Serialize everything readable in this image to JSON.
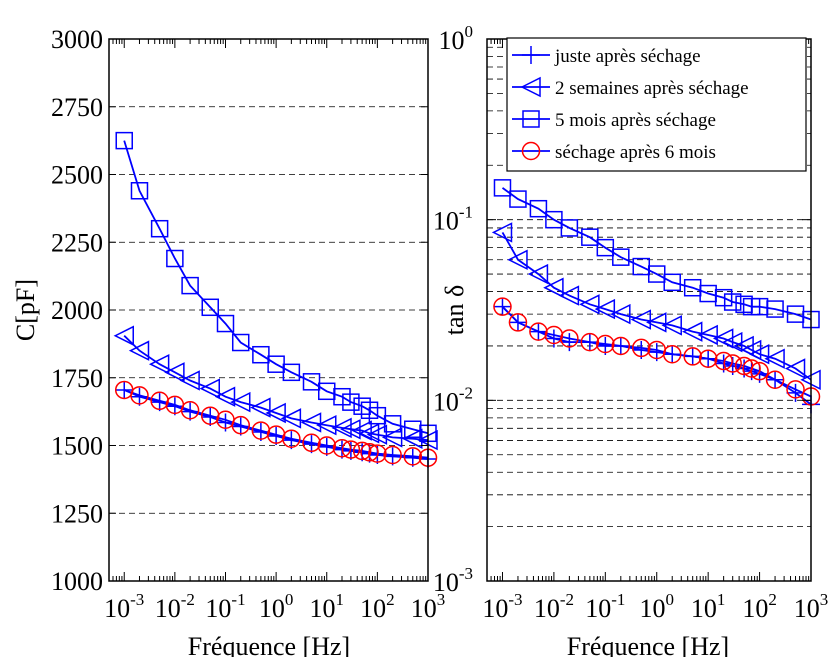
{
  "chart_data": [
    {
      "type": "line",
      "title": "",
      "xlabel": "Fréquence [Hz]",
      "ylabel": "C[pF]",
      "xscale": "log",
      "xlim": [
        0.0005,
        1000
      ],
      "ylim": [
        1000,
        3000
      ],
      "xticks": [
        0.001,
        0.01,
        0.1,
        1,
        10,
        100,
        1000
      ],
      "xtick_labels": [
        {
          "base": "10",
          "exp": "-3"
        },
        {
          "base": "10",
          "exp": "-2"
        },
        {
          "base": "10",
          "exp": "-1"
        },
        {
          "base": "10",
          "exp": "0"
        },
        {
          "base": "10",
          "exp": "1"
        },
        {
          "base": "10",
          "exp": "2"
        },
        {
          "base": "10",
          "exp": "3"
        }
      ],
      "yticks": [
        1000,
        1250,
        1500,
        1750,
        2000,
        2250,
        2500,
        2750,
        3000
      ],
      "ytick_labels": [
        "1000",
        "1250",
        "1500",
        "1750",
        "2000",
        "2250",
        "2500",
        "2750",
        "3000"
      ],
      "grid": "horizontal dashed",
      "legend": "none",
      "series": [
        {
          "name": "juste après séchage",
          "color": "#0000ff",
          "marker": "plus",
          "x": [
            0.001,
            0.002,
            0.005,
            0.01,
            0.02,
            0.05,
            0.1,
            0.2,
            0.5,
            1,
            2,
            5,
            10,
            20,
            30,
            50,
            70,
            100,
            200,
            500,
            1000
          ],
          "y": [
            1705,
            1680,
            1660,
            1645,
            1625,
            1605,
            1585,
            1570,
            1550,
            1535,
            1520,
            1505,
            1495,
            1485,
            1480,
            1475,
            1470,
            1465,
            1460,
            1455,
            1450
          ]
        },
        {
          "name": "2 semaines après séchage",
          "color": "#0000ff",
          "marker": "triangle-left",
          "x": [
            0.001,
            0.002,
            0.005,
            0.01,
            0.02,
            0.05,
            0.1,
            0.2,
            0.5,
            1,
            2,
            5,
            10,
            20,
            30,
            50,
            70,
            100,
            200,
            500,
            1000
          ],
          "y": [
            1905,
            1850,
            1800,
            1770,
            1740,
            1710,
            1680,
            1660,
            1640,
            1620,
            1600,
            1585,
            1575,
            1565,
            1560,
            1555,
            1545,
            1540,
            1530,
            1525,
            1520
          ]
        },
        {
          "name": "5 mois après séchage",
          "color": "#0000ff",
          "marker": "square",
          "x": [
            0.001,
            0.002,
            0.005,
            0.01,
            0.02,
            0.05,
            0.1,
            0.2,
            0.5,
            1,
            2,
            5,
            10,
            20,
            30,
            50,
            70,
            100,
            200,
            500,
            1000
          ],
          "y": [
            2625,
            2440,
            2300,
            2190,
            2090,
            2010,
            1950,
            1880,
            1835,
            1800,
            1770,
            1735,
            1700,
            1680,
            1660,
            1645,
            1630,
            1610,
            1580,
            1560,
            1545
          ]
        },
        {
          "name": "séchage après 6 mois",
          "color": "#ff0000",
          "line_color": "#0000ff",
          "marker": "circle",
          "x": [
            0.001,
            0.002,
            0.005,
            0.01,
            0.02,
            0.05,
            0.1,
            0.2,
            0.5,
            1,
            2,
            5,
            10,
            20,
            30,
            50,
            70,
            100,
            200,
            500,
            1000
          ],
          "y": [
            1705,
            1685,
            1665,
            1650,
            1630,
            1610,
            1595,
            1575,
            1555,
            1540,
            1525,
            1510,
            1500,
            1490,
            1485,
            1480,
            1475,
            1470,
            1465,
            1460,
            1455
          ]
        }
      ]
    },
    {
      "type": "line",
      "title": "",
      "xlabel": "Fréquence [Hz]",
      "ylabel": "tan δ",
      "xscale": "log",
      "yscale": "log",
      "xlim": [
        0.0005,
        1000
      ],
      "ylim": [
        0.001,
        1
      ],
      "xticks": [
        0.001,
        0.01,
        0.1,
        1,
        10,
        100,
        1000
      ],
      "xtick_labels": [
        {
          "base": "10",
          "exp": "-3"
        },
        {
          "base": "10",
          "exp": "-2"
        },
        {
          "base": "10",
          "exp": "-1"
        },
        {
          "base": "10",
          "exp": "0"
        },
        {
          "base": "10",
          "exp": "1"
        },
        {
          "base": "10",
          "exp": "2"
        },
        {
          "base": "10",
          "exp": "3"
        }
      ],
      "yticks": [
        0.001,
        0.01,
        0.1,
        1
      ],
      "ytick_labels": [
        {
          "base": "10",
          "exp": "-3"
        },
        {
          "base": "10",
          "exp": "-2"
        },
        {
          "base": "10",
          "exp": "-1"
        },
        {
          "base": "10",
          "exp": "0"
        }
      ],
      "grid": "horizontal dashed (major and minor)",
      "legend": "top-right",
      "series": [
        {
          "name": "juste après séchage",
          "color": "#0000ff",
          "marker": "plus",
          "x": [
            0.001,
            0.002,
            0.005,
            0.01,
            0.02,
            0.05,
            0.1,
            0.2,
            0.5,
            1,
            2,
            5,
            10,
            20,
            30,
            50,
            70,
            100,
            200,
            500,
            1000
          ],
          "y": [
            0.033,
            0.027,
            0.024,
            0.022,
            0.021,
            0.021,
            0.02,
            0.02,
            0.019,
            0.0185,
            0.018,
            0.0175,
            0.017,
            0.016,
            0.0155,
            0.015,
            0.0145,
            0.014,
            0.013,
            0.011,
            0.0095
          ]
        },
        {
          "name": "2 semaines après séchage",
          "color": "#0000ff",
          "marker": "triangle-left",
          "x": [
            0.001,
            0.002,
            0.005,
            0.01,
            0.02,
            0.05,
            0.1,
            0.2,
            0.5,
            1,
            2,
            5,
            10,
            20,
            30,
            50,
            70,
            100,
            200,
            500,
            1000
          ],
          "y": [
            0.085,
            0.06,
            0.05,
            0.042,
            0.038,
            0.034,
            0.032,
            0.03,
            0.028,
            0.027,
            0.026,
            0.024,
            0.023,
            0.022,
            0.021,
            0.02,
            0.019,
            0.018,
            0.017,
            0.015,
            0.013
          ]
        },
        {
          "name": "5 mois après séchage",
          "color": "#0000ff",
          "marker": "square",
          "x": [
            0.001,
            0.002,
            0.005,
            0.01,
            0.02,
            0.05,
            0.1,
            0.2,
            0.5,
            1,
            2,
            5,
            10,
            20,
            30,
            50,
            70,
            100,
            200,
            500,
            1000
          ],
          "y": [
            0.15,
            0.13,
            0.115,
            0.1,
            0.09,
            0.08,
            0.07,
            0.062,
            0.055,
            0.05,
            0.045,
            0.042,
            0.039,
            0.037,
            0.035,
            0.034,
            0.033,
            0.033,
            0.032,
            0.03,
            0.028
          ]
        },
        {
          "name": "séchage après 6 mois",
          "color": "#ff0000",
          "line_color": "#0000ff",
          "marker": "circle",
          "x": [
            0.001,
            0.002,
            0.005,
            0.01,
            0.02,
            0.05,
            0.1,
            0.2,
            0.5,
            1,
            2,
            5,
            10,
            20,
            30,
            50,
            70,
            100,
            200,
            500,
            1000
          ],
          "y": [
            0.033,
            0.027,
            0.024,
            0.023,
            0.022,
            0.021,
            0.0205,
            0.02,
            0.0195,
            0.019,
            0.018,
            0.0175,
            0.017,
            0.0165,
            0.016,
            0.0155,
            0.015,
            0.0145,
            0.013,
            0.0115,
            0.0105
          ]
        }
      ]
    }
  ]
}
